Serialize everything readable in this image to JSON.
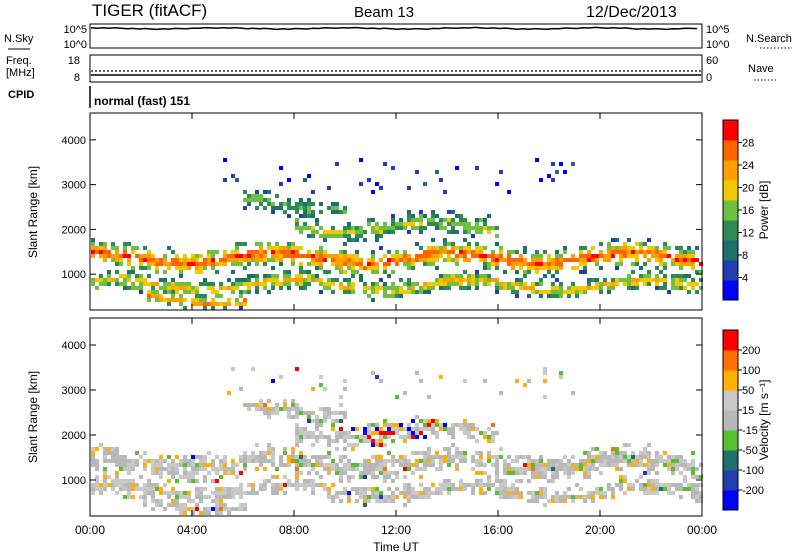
{
  "header": {
    "radar": "TIGER (fitACF)",
    "beam": "Beam 13",
    "date": "12/Dec/2013"
  },
  "status_panels": {
    "sky_label": "N.Sky",
    "sky_ticks": [
      "10^5",
      "10^0"
    ],
    "search_label": "N.Search",
    "search_ticks": [
      "10^5",
      "10^0"
    ],
    "freq_label": "Freq.",
    "freq_unit": "[MHz]",
    "freq_ticks": [
      "18",
      "8"
    ],
    "nave_label": "Nave",
    "nave_ticks": [
      "60",
      "0"
    ],
    "cpid_label": "CPID",
    "cpid_text": "normal (fast) 151"
  },
  "chart_data": [
    {
      "type": "heatmap",
      "name": "power",
      "ylabel": "Slant Range [km]",
      "xlabel": "",
      "ylim": [
        200,
        4600
      ],
      "yticks": [
        "4000",
        "3000",
        "2000",
        "1000"
      ],
      "xlim": [
        0,
        24
      ],
      "colorbar": {
        "label": "Power [dB]",
        "ticks": [
          "28",
          "24",
          "20",
          "16",
          "12",
          "8",
          "4"
        ],
        "colors": [
          "#0000ff",
          "#2040b0",
          "#1f6f6f",
          "#2e8b57",
          "#6fc040",
          "#f0c800",
          "#ffa000",
          "#ff6400",
          "#ff0000"
        ]
      },
      "bands": [
        {
          "center_km": 1400,
          "width_km": 360,
          "t_start": 0,
          "t_end": 24,
          "level": 0.8
        },
        {
          "center_km": 800,
          "width_km": 260,
          "t_start": 0,
          "t_end": 24,
          "level": 0.55
        },
        {
          "center_km": 500,
          "width_km": 200,
          "t_start": 2,
          "t_end": 6,
          "level": 0.7
        },
        {
          "center_km": 2100,
          "width_km": 300,
          "t_start": 8,
          "t_end": 16,
          "level": 0.45
        },
        {
          "center_km": 2600,
          "width_km": 250,
          "t_start": 6,
          "t_end": 10,
          "level": 0.35
        }
      ]
    },
    {
      "type": "heatmap",
      "name": "velocity",
      "ylabel": "Slant Range [km]",
      "xlabel": "Time UT",
      "ylim": [
        200,
        4600
      ],
      "yticks": [
        "4000",
        "3000",
        "2000",
        "1000"
      ],
      "xlim": [
        0,
        24
      ],
      "xticks": [
        "00:00",
        "04:00",
        "08:00",
        "12:00",
        "16:00",
        "20:00",
        "00:00"
      ],
      "colorbar": {
        "label": "Velocity [m s⁻¹]",
        "ticks": [
          "200",
          "100",
          "50",
          "15",
          "-15",
          "-50",
          "-100",
          "-200"
        ],
        "colors": [
          "#0000ff",
          "#2040b0",
          "#1f6f6f",
          "#58c030",
          "#b8b8b8",
          "#c8c8c8",
          "#ffb000",
          "#ff7000",
          "#ff0000"
        ]
      }
    }
  ]
}
